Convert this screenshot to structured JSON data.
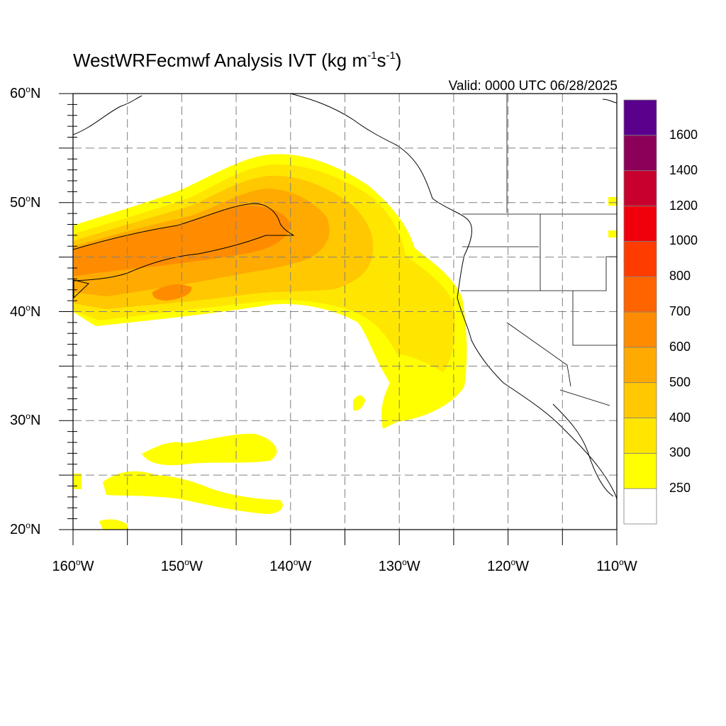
{
  "title": {
    "main": "WestWRFecmwf Analysis IVT (kg m",
    "exp1": "-1",
    "mid": "s",
    "exp2": "-1",
    "close": ")"
  },
  "valid_label": "Valid: 0000 UTC 06/28/2025",
  "degree_symbol": "o",
  "lat_labels": [
    {
      "text": "60",
      "hemi": "N"
    },
    {
      "text": "50",
      "hemi": "N"
    },
    {
      "text": "40",
      "hemi": "N"
    },
    {
      "text": "30",
      "hemi": "N"
    },
    {
      "text": "20",
      "hemi": "N"
    }
  ],
  "lon_labels": [
    {
      "text": "160",
      "hemi": "W"
    },
    {
      "text": "150",
      "hemi": "W"
    },
    {
      "text": "140",
      "hemi": "W"
    },
    {
      "text": "130",
      "hemi": "W"
    },
    {
      "text": "120",
      "hemi": "W"
    },
    {
      "text": "110",
      "hemi": "W"
    }
  ],
  "colorbar": {
    "labels": [
      "1600",
      "1400",
      "1200",
      "1000",
      "800",
      "700",
      "600",
      "500",
      "400",
      "300",
      "250"
    ],
    "colors": [
      "#ffffff",
      "#ffff00",
      "#ffe600",
      "#ffc800",
      "#ffaa00",
      "#ff8c00",
      "#ff6400",
      "#ff3c00",
      "#f0000a",
      "#c8002d",
      "#8c005a",
      "#5a008c"
    ]
  },
  "map": {
    "lon_range": [
      -160,
      -110
    ],
    "lat_range": [
      20,
      60
    ],
    "grid_lon": [
      -155,
      -150,
      -145,
      -140,
      -135,
      -130,
      -125,
      -120,
      -115
    ],
    "grid_lat": [
      25,
      30,
      35,
      40,
      45,
      50,
      55
    ]
  }
}
